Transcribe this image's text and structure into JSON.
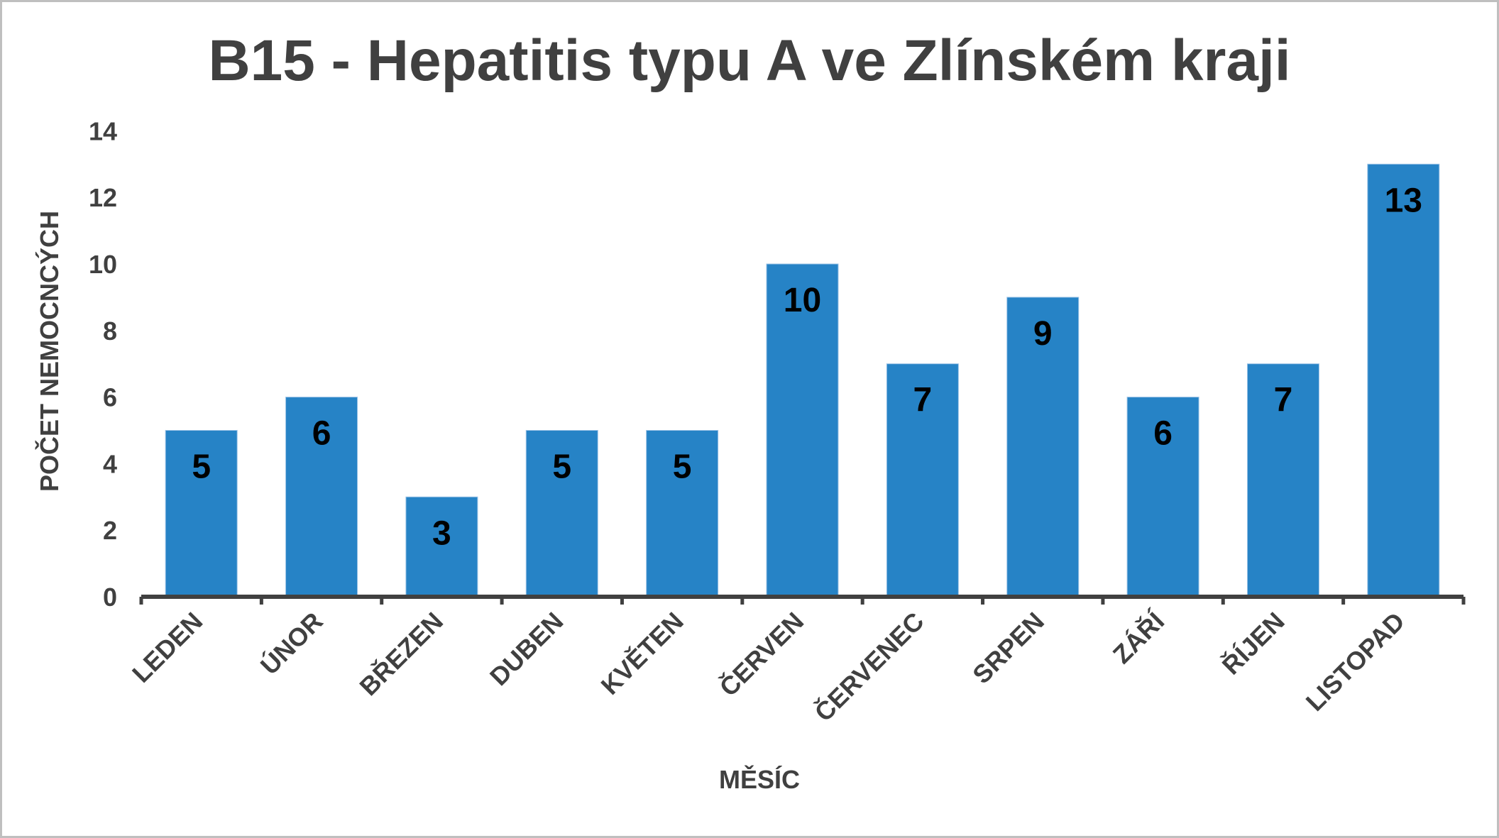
{
  "chart": {
    "title": "B15 - Hepatitis typu A ve Zlínském kraji",
    "ylabel": "POČET NEMOCNCÝCH",
    "xlabel": "MĚSÍC",
    "bar_color": "#2683C6",
    "axis_color": "#404040",
    "border_color": "#BFBFBF"
  },
  "chart_data": {
    "type": "bar",
    "title": "B15 - Hepatitis typu A ve Zlínském kraji",
    "xlabel": "MĚSÍC",
    "ylabel": "POČET NEMOCNCÝCH",
    "categories": [
      "LEDEN",
      "ÚNOR",
      "BŘEZEN",
      "DUBEN",
      "KVĚTEN",
      "ČERVEN",
      "ČERVENEC",
      "SRPEN",
      "ZÁŘÍ",
      "ŘÍJEN",
      "LISTOPAD"
    ],
    "values": [
      5,
      6,
      3,
      5,
      5,
      10,
      7,
      9,
      6,
      7,
      13
    ],
    "yticks": [
      0,
      2,
      4,
      6,
      8,
      10,
      12,
      14
    ],
    "ylim": [
      0,
      14
    ],
    "grid": false,
    "legend": null,
    "data_labels": true,
    "data_label_position": "inside_end",
    "xtick_rotation": -45
  }
}
